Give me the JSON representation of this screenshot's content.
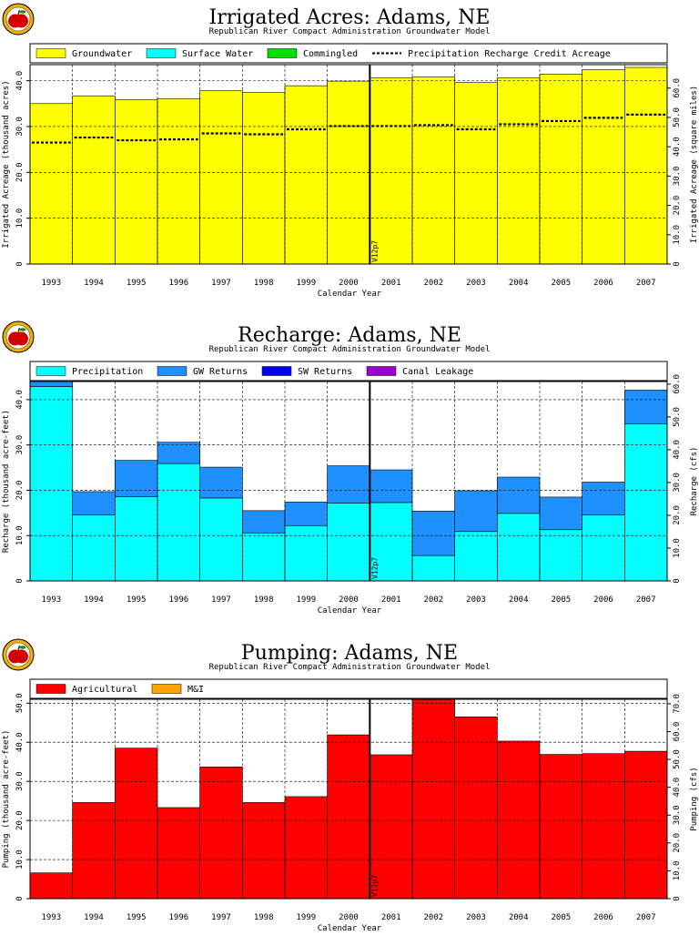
{
  "subtitle": "Republican River Compact Administration Groundwater Model",
  "xlabel": "Calendar Year",
  "condition_label": "V12p7",
  "colors": {
    "groundwater": "#ffff00",
    "surface_water": "#00ffff",
    "commingled": "#00dd00",
    "precipitation": "#00ffff",
    "gw_returns": "#1e90ff",
    "sw_returns": "#0000ff",
    "canal_leakage": "#9900cc",
    "agricultural": "#ff0000",
    "mi": "#ffa500",
    "logo_rim": "#f0b000",
    "apple": "#d40000"
  },
  "icons": {
    "logo": "apple-seal-icon"
  },
  "chart_data": [
    {
      "type": "bar",
      "title": "Irrigated Acres: Adams, NE",
      "subtitle": "Republican River Compact Administration Groundwater Model",
      "xlabel": "Calendar Year",
      "ylabel": "Irrigated Acreage (thousand acres)",
      "ylabel2": "Irrigated Acreage (square miles)",
      "ylim": [
        0,
        43.5
      ],
      "yticks": [
        0,
        10,
        20,
        30,
        40
      ],
      "ytick_labels": [
        "0",
        "10.0",
        "20.0",
        "30.0",
        "40.0"
      ],
      "ylim2": [
        0,
        68
      ],
      "yticks2": [
        0,
        10,
        20,
        30,
        40,
        50,
        60
      ],
      "ytick_labels2": [
        "0",
        "10.0",
        "20.0",
        "30.0",
        "40.0",
        "50.0",
        "60.0"
      ],
      "grid": true,
      "legend_position": "top",
      "categories": [
        "1993",
        "1994",
        "1995",
        "1996",
        "1997",
        "1998",
        "1999",
        "2000",
        "2001",
        "2002",
        "2003",
        "2004",
        "2005",
        "2006",
        "2007"
      ],
      "vline_after": "2000",
      "series": [
        {
          "name": "Groundwater",
          "kind": "bar",
          "color": "#ffff00",
          "values": [
            35.0,
            36.7,
            35.9,
            36.1,
            37.8,
            37.4,
            38.9,
            39.9,
            40.6,
            40.8,
            39.6,
            40.6,
            41.4,
            42.4,
            42.9
          ]
        },
        {
          "name": "Surface Water",
          "kind": "bar",
          "color": "#00ffff",
          "values": [
            0,
            0,
            0,
            0,
            0,
            0,
            0,
            0,
            0,
            0,
            0,
            0,
            0,
            0,
            0
          ]
        },
        {
          "name": "Commingled",
          "kind": "bar",
          "color": "#00dd00",
          "values": [
            0,
            0,
            0,
            0,
            0,
            0,
            0,
            0,
            0,
            0,
            0,
            0,
            0,
            0,
            0
          ]
        },
        {
          "name": "Precipitation Recharge Credit Acreage",
          "kind": "step-dashed",
          "color": "#000000",
          "values": [
            26.5,
            27.6,
            27.0,
            27.2,
            28.5,
            28.3,
            29.4,
            30.1,
            30.1,
            30.3,
            29.4,
            30.5,
            31.2,
            31.9,
            32.6
          ]
        }
      ]
    },
    {
      "type": "bar",
      "title": "Recharge: Adams, NE",
      "subtitle": "Republican River Compact Administration Groundwater Model",
      "xlabel": "Calendar Year",
      "ylabel": "Recharge (thousand acre-feet)",
      "ylabel2": "Recharge (cfs)",
      "ylim": [
        0,
        44
      ],
      "yticks": [
        0,
        10,
        20,
        30,
        40
      ],
      "ytick_labels": [
        "0",
        "10.0",
        "20.0",
        "30.0",
        "40.0"
      ],
      "ylim2": [
        0,
        60.8
      ],
      "yticks2": [
        0,
        10,
        20,
        30,
        40,
        50,
        60
      ],
      "ytick_labels2": [
        "0",
        "10.0",
        "20.0",
        "30.0",
        "40.0",
        "50.0",
        "60.0"
      ],
      "grid": true,
      "legend_position": "top",
      "categories": [
        "1993",
        "1994",
        "1995",
        "1996",
        "1997",
        "1998",
        "1999",
        "2000",
        "2001",
        "2002",
        "2003",
        "2004",
        "2005",
        "2006",
        "2007"
      ],
      "vline_after": "2000",
      "stacked": true,
      "series": [
        {
          "name": "Precipitation",
          "color": "#00ffff",
          "values": [
            42.9,
            14.6,
            18.6,
            25.9,
            18.3,
            10.6,
            12.2,
            17.2,
            17.3,
            5.6,
            10.9,
            14.9,
            11.3,
            14.6,
            34.7
          ]
        },
        {
          "name": "GW Returns",
          "color": "#1e90ff",
          "values": [
            1.3,
            5.1,
            8.0,
            4.7,
            6.8,
            4.9,
            5.2,
            8.2,
            7.2,
            9.8,
            9.0,
            8.0,
            7.2,
            7.2,
            7.4
          ]
        },
        {
          "name": "SW Returns",
          "color": "#0000ff",
          "values": [
            0,
            0,
            0,
            0,
            0,
            0,
            0,
            0,
            0,
            0,
            0,
            0,
            0,
            0,
            0
          ]
        },
        {
          "name": "Canal Leakage",
          "color": "#9900cc",
          "values": [
            0,
            0,
            0,
            0,
            0,
            0,
            0,
            0,
            0,
            0,
            0,
            0,
            0,
            0,
            0
          ]
        }
      ]
    },
    {
      "type": "bar",
      "title": "Pumping: Adams, NE",
      "subtitle": "Republican River Compact Administration Groundwater Model",
      "xlabel": "Calendar Year",
      "ylabel": "Pumping (thousand acre-feet)",
      "ylabel2": "Pumping (cfs)",
      "ylim": [
        0,
        51
      ],
      "yticks": [
        0,
        10,
        20,
        30,
        40,
        50
      ],
      "ytick_labels": [
        "0",
        "10.0",
        "20.0",
        "30.0",
        "40.0",
        "50.0"
      ],
      "ylim2": [
        0,
        71.6
      ],
      "yticks2": [
        0,
        10,
        20,
        30,
        40,
        50,
        60,
        70
      ],
      "ytick_labels2": [
        "0",
        "10.0",
        "20.0",
        "30.0",
        "40.0",
        "50.0",
        "60.0",
        "70.0"
      ],
      "grid": true,
      "legend_position": "top",
      "categories": [
        "1993",
        "1994",
        "1995",
        "1996",
        "1997",
        "1998",
        "1999",
        "2000",
        "2001",
        "2002",
        "2003",
        "2004",
        "2005",
        "2006",
        "2007"
      ],
      "vline_after": "2000",
      "stacked": true,
      "series": [
        {
          "name": "Agricultural",
          "color": "#ff0000",
          "values": [
            6.6,
            24.6,
            38.5,
            23.3,
            33.7,
            24.6,
            26.1,
            41.9,
            36.8,
            51.0,
            46.5,
            40.3,
            36.9,
            37.1,
            37.7
          ]
        },
        {
          "name": "M&I",
          "color": "#ffa500",
          "values": [
            0,
            0,
            0,
            0,
            0,
            0,
            0,
            0,
            0,
            0,
            0,
            0,
            0,
            0,
            0
          ]
        }
      ]
    }
  ]
}
